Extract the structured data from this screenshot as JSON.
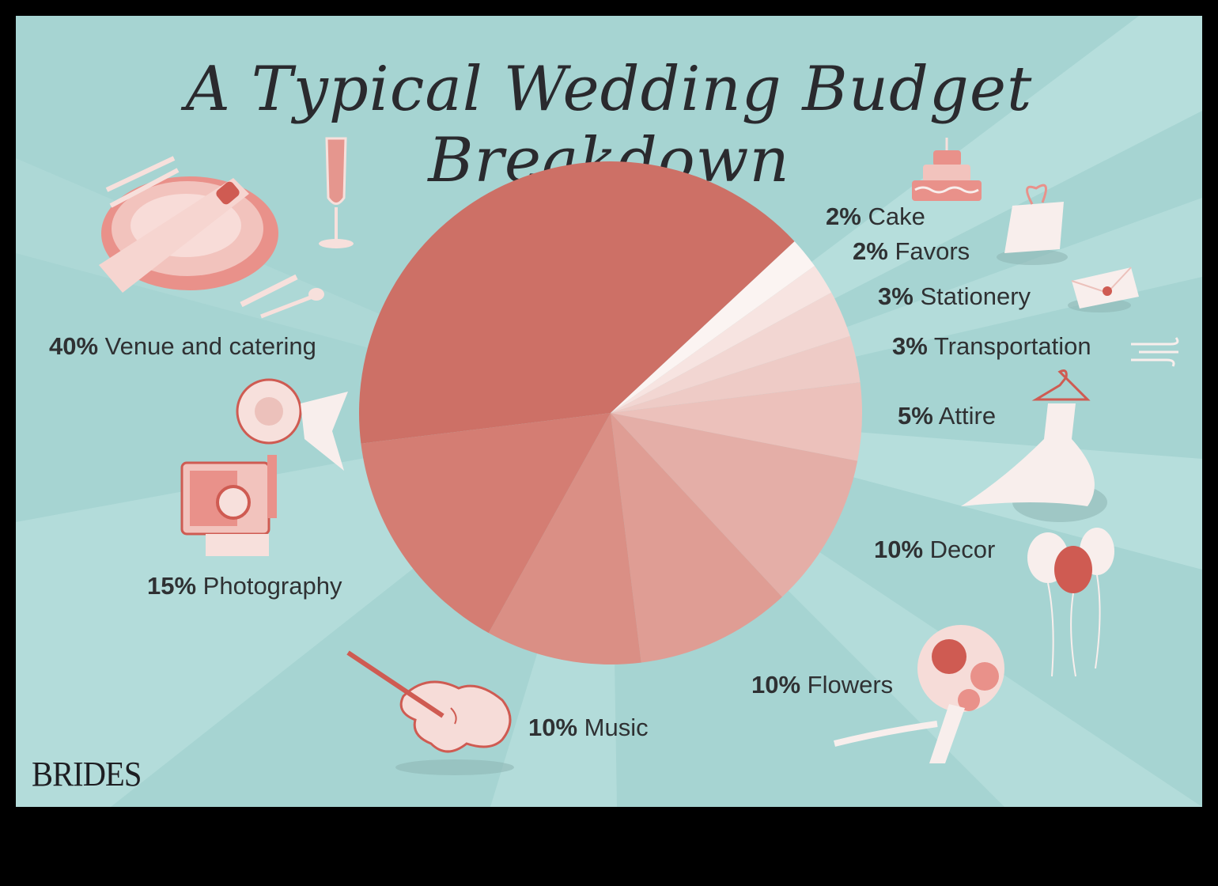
{
  "title": "A Typical Wedding Budget Breakdown",
  "brand": "BRIDES",
  "colors": {
    "background": "#a6d4d2",
    "ray": "#b6dedc",
    "accent": "#d06c64",
    "ink": "#2f3133"
  },
  "chart_data": {
    "type": "pie",
    "title": "A Typical Wedding Budget Breakdown",
    "slices": [
      {
        "pct": "40%",
        "name": "Venue and catering",
        "value": 40,
        "color": "#cd7066"
      },
      {
        "pct": "2%",
        "name": "Cake",
        "value": 2,
        "color": "#fbf4f2"
      },
      {
        "pct": "2%",
        "name": "Favors",
        "value": 2,
        "color": "#f7e4e1"
      },
      {
        "pct": "3%",
        "name": "Stationery",
        "value": 3,
        "color": "#f2d6d2"
      },
      {
        "pct": "3%",
        "name": "Transportation",
        "value": 3,
        "color": "#eecbc6"
      },
      {
        "pct": "5%",
        "name": "Attire",
        "value": 5,
        "color": "#ecc1bb"
      },
      {
        "pct": "10%",
        "name": "Decor",
        "value": 10,
        "color": "#e4aea7"
      },
      {
        "pct": "10%",
        "name": "Flowers",
        "value": 10,
        "color": "#df9d94"
      },
      {
        "pct": "10%",
        "name": "Music",
        "value": 10,
        "color": "#da8f85"
      },
      {
        "pct": "15%",
        "name": "Photography",
        "value": 15,
        "color": "#d47d73"
      }
    ]
  },
  "icons": [
    "place-setting-icon",
    "champagne-glass-icon",
    "camera-icon",
    "violin-icon",
    "cake-icon",
    "gift-bag-icon",
    "envelope-icon",
    "wind-icon",
    "wedding-dress-icon",
    "balloons-icon",
    "bouquet-icon"
  ]
}
